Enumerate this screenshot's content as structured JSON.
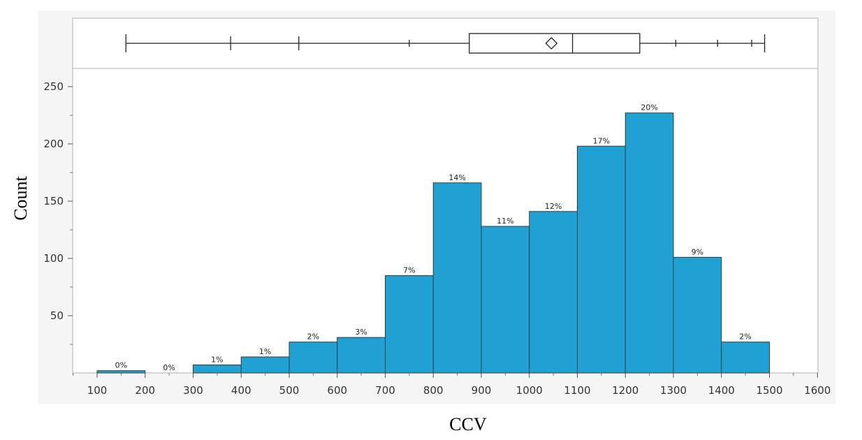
{
  "chart_data": {
    "type": "bar",
    "histogram": true,
    "xlabel": "CCV",
    "ylabel": "Count",
    "xlim": [
      50,
      1600
    ],
    "ylim": [
      0,
      265
    ],
    "x_ticks": [
      100,
      200,
      300,
      400,
      500,
      600,
      700,
      800,
      900,
      1000,
      1100,
      1200,
      1300,
      1400,
      1500,
      1600
    ],
    "y_ticks": [
      50,
      100,
      150,
      200,
      250
    ],
    "grid": false,
    "bar_color": "#1fa2d3",
    "bins": [
      {
        "start": 100,
        "end": 200,
        "count": 2,
        "label": "0%"
      },
      {
        "start": 200,
        "end": 300,
        "count": 0,
        "label": "0%"
      },
      {
        "start": 300,
        "end": 400,
        "count": 7,
        "label": "1%"
      },
      {
        "start": 400,
        "end": 500,
        "count": 14,
        "label": "1%"
      },
      {
        "start": 500,
        "end": 600,
        "count": 27,
        "label": "2%"
      },
      {
        "start": 600,
        "end": 700,
        "count": 31,
        "label": "3%"
      },
      {
        "start": 700,
        "end": 800,
        "count": 85,
        "label": "7%"
      },
      {
        "start": 800,
        "end": 900,
        "count": 166,
        "label": "14%"
      },
      {
        "start": 900,
        "end": 1000,
        "count": 128,
        "label": "11%"
      },
      {
        "start": 1000,
        "end": 1100,
        "count": 141,
        "label": "12%"
      },
      {
        "start": 1100,
        "end": 1200,
        "count": 198,
        "label": "17%"
      },
      {
        "start": 1200,
        "end": 1300,
        "count": 227,
        "label": "20%"
      },
      {
        "start": 1300,
        "end": 1400,
        "count": 101,
        "label": "9%"
      },
      {
        "start": 1400,
        "end": 1500,
        "count": 27,
        "label": "2%"
      }
    ],
    "box_plot": {
      "min": 160,
      "quantile_ticks": [
        378,
        520,
        750,
        1305,
        1392,
        1463
      ],
      "q1": 875,
      "median": 1090,
      "mean": 1046,
      "q3": 1230,
      "max": 1490
    }
  }
}
